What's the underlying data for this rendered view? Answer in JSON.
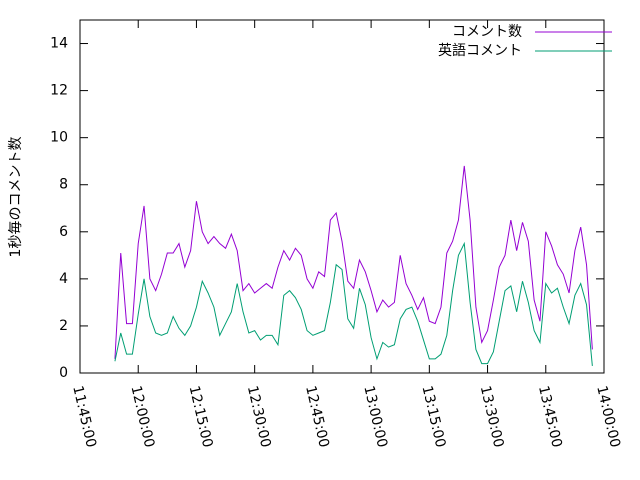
{
  "chart_data": {
    "type": "line",
    "ylabel": "1秒毎のコメント数",
    "x": [
      "11:54:00",
      "11:55:30",
      "11:57:00",
      "11:58:30",
      "12:00:00",
      "12:01:30",
      "12:03:00",
      "12:04:30",
      "12:06:00",
      "12:07:30",
      "12:09:00",
      "12:10:30",
      "12:12:00",
      "12:13:30",
      "12:15:00",
      "12:16:30",
      "12:18:00",
      "12:19:30",
      "12:21:00",
      "12:22:30",
      "12:24:00",
      "12:25:30",
      "12:27:00",
      "12:28:30",
      "12:30:00",
      "12:31:30",
      "12:33:00",
      "12:34:30",
      "12:36:00",
      "12:37:30",
      "12:39:00",
      "12:40:30",
      "12:42:00",
      "12:43:30",
      "12:45:00",
      "12:46:30",
      "12:48:00",
      "12:49:30",
      "12:51:00",
      "12:52:30",
      "12:54:00",
      "12:55:30",
      "12:57:00",
      "12:58:30",
      "13:00:00",
      "13:01:30",
      "13:03:00",
      "13:04:30",
      "13:06:00",
      "13:07:30",
      "13:09:00",
      "13:10:30",
      "13:12:00",
      "13:13:30",
      "13:15:00",
      "13:16:30",
      "13:18:00",
      "13:19:30",
      "13:21:00",
      "13:22:30",
      "13:24:00",
      "13:25:30",
      "13:27:00",
      "13:28:30",
      "13:30:00",
      "13:31:30",
      "13:33:00",
      "13:34:30",
      "13:36:00",
      "13:37:30",
      "13:39:00",
      "13:40:30",
      "13:42:00",
      "13:43:30",
      "13:45:00",
      "13:46:30",
      "13:48:00",
      "13:49:30",
      "13:51:00",
      "13:52:30",
      "13:54:00",
      "13:55:30",
      "13:57:00"
    ],
    "series": [
      {
        "name": "コメント数",
        "color": "#9400d3",
        "values": [
          0.6,
          5.1,
          2.1,
          2.1,
          5.5,
          7.1,
          4.0,
          3.5,
          4.2,
          5.1,
          5.1,
          5.5,
          4.5,
          5.2,
          7.3,
          6.0,
          5.5,
          5.8,
          5.5,
          5.3,
          5.9,
          5.2,
          3.5,
          3.8,
          3.4,
          3.6,
          3.8,
          3.6,
          4.5,
          5.2,
          4.8,
          5.3,
          5.0,
          4.0,
          3.6,
          4.3,
          4.1,
          6.5,
          6.8,
          5.6,
          3.9,
          3.6,
          4.8,
          4.3,
          3.5,
          2.6,
          3.1,
          2.8,
          3.0,
          5.0,
          3.8,
          3.3,
          2.7,
          3.2,
          2.2,
          2.1,
          2.8,
          5.1,
          5.6,
          6.5,
          8.8,
          6.5,
          2.8,
          1.3,
          1.8,
          3.1,
          4.5,
          5.0,
          6.5,
          5.2,
          6.4,
          5.6,
          3.1,
          2.2,
          6.0,
          5.4,
          4.6,
          4.2,
          3.4,
          5.2,
          6.2,
          4.6,
          1.0
        ]
      },
      {
        "name": "英語コメント",
        "color": "#009e73",
        "values": [
          0.5,
          1.7,
          0.8,
          0.8,
          2.5,
          4.0,
          2.4,
          1.7,
          1.6,
          1.7,
          2.4,
          1.9,
          1.6,
          2.0,
          2.8,
          3.9,
          3.4,
          2.8,
          1.6,
          2.1,
          2.6,
          3.8,
          2.6,
          1.7,
          1.8,
          1.4,
          1.6,
          1.6,
          1.2,
          3.3,
          3.5,
          3.2,
          2.7,
          1.8,
          1.6,
          1.7,
          1.8,
          3.0,
          4.6,
          4.4,
          2.3,
          1.9,
          3.6,
          2.9,
          1.5,
          0.6,
          1.3,
          1.1,
          1.2,
          2.3,
          2.7,
          2.8,
          2.2,
          1.4,
          0.6,
          0.6,
          0.8,
          1.6,
          3.5,
          5.0,
          5.5,
          3.0,
          1.0,
          0.4,
          0.4,
          0.9,
          2.2,
          3.5,
          3.7,
          2.6,
          3.9,
          3.0,
          1.8,
          1.3,
          3.8,
          3.4,
          3.6,
          2.8,
          2.1,
          3.3,
          3.8,
          2.9,
          0.3
        ]
      }
    ],
    "xlim": [
      "11:45:00",
      "14:00:00"
    ],
    "xticks": [
      "11:45:00",
      "12:00:00",
      "12:15:00",
      "12:30:00",
      "12:45:00",
      "13:00:00",
      "13:15:00",
      "13:30:00",
      "13:45:00",
      "14:00:00"
    ],
    "ylim": [
      0,
      15
    ],
    "yticks": [
      0,
      2,
      4,
      6,
      8,
      10,
      12,
      14
    ],
    "legend": "upper-right"
  }
}
